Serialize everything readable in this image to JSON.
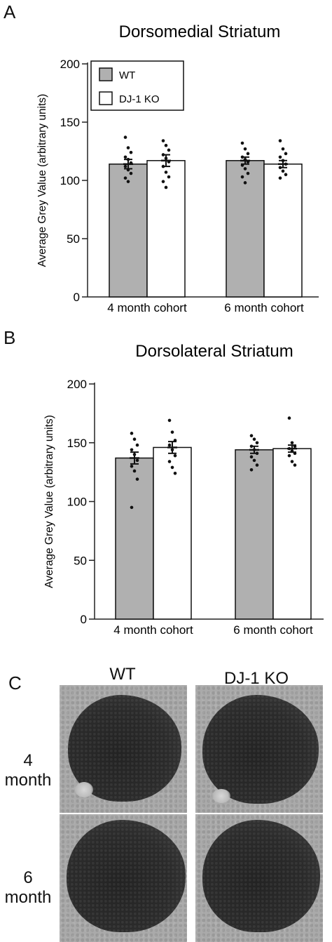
{
  "panels": {
    "a": {
      "letter": "A"
    },
    "b": {
      "letter": "B"
    },
    "c": {
      "letter": "C"
    }
  },
  "chart_data": [
    {
      "type": "bar",
      "title": "Dorsomedial Striatum",
      "ylabel": "Average Grey Value (arbitrary units)",
      "xlabel": "",
      "ylim": [
        0,
        200
      ],
      "yticks": [
        0,
        50,
        100,
        150,
        200
      ],
      "categories": [
        "4 month cohort",
        "6 month cohort"
      ],
      "legend": {
        "position": "top-left",
        "entries": [
          "WT",
          "DJ-1 KO"
        ]
      },
      "series": [
        {
          "name": "WT",
          "color": "#b0b0b0",
          "values": [
            114,
            117
          ],
          "sem": [
            4,
            3
          ],
          "points": [
            [
              137,
              128,
              124,
              120,
              118,
              115,
              112,
              109,
              106,
              102,
              99
            ],
            [
              132,
              127,
              123,
              120,
              118,
              116,
              113,
              110,
              106,
              103,
              98
            ]
          ]
        },
        {
          "name": "DJ-1 KO",
          "color": "#ffffff",
          "values": [
            117,
            114
          ],
          "sem": [
            5,
            3
          ],
          "points": [
            [
              134,
              130,
              126,
              122,
              119,
              116,
              112,
              107,
              103,
              99,
              94
            ],
            [
              134,
              127,
              123,
              120,
              117,
              114,
              111,
              108,
              105,
              102
            ]
          ]
        }
      ]
    },
    {
      "type": "bar",
      "title": "Dorsolateral Striatum",
      "ylabel": "Average Grey Value (arbitrary units)",
      "xlabel": "",
      "ylim": [
        0,
        200
      ],
      "yticks": [
        0,
        50,
        100,
        150,
        200
      ],
      "categories": [
        "4 month cohort",
        "6 month cohort"
      ],
      "series": [
        {
          "name": "WT",
          "color": "#b0b0b0",
          "values": [
            137,
            144
          ],
          "sem": [
            5,
            3
          ],
          "points": [
            [
              158,
              153,
              148,
              144,
              140,
              135,
              130,
              126,
              119,
              95
            ],
            [
              156,
              153,
              150,
              147,
              144,
              141,
              138,
              135,
              131,
              127
            ]
          ]
        },
        {
          "name": "DJ-1 KO",
          "color": "#ffffff",
          "values": [
            146,
            145
          ],
          "sem": [
            5,
            3
          ],
          "points": [
            [
              169,
              159,
              152,
              148,
              144,
              139,
              134,
              129,
              124
            ],
            [
              171,
              150,
              147,
              145,
              143,
              141,
              139,
              134,
              131
            ]
          ]
        }
      ]
    }
  ],
  "images": {
    "columns": [
      "WT",
      "DJ-1 KO"
    ],
    "rows": [
      {
        "label_top": "4",
        "label_bottom": "month"
      },
      {
        "label_top": "6",
        "label_bottom": "month"
      }
    ]
  }
}
